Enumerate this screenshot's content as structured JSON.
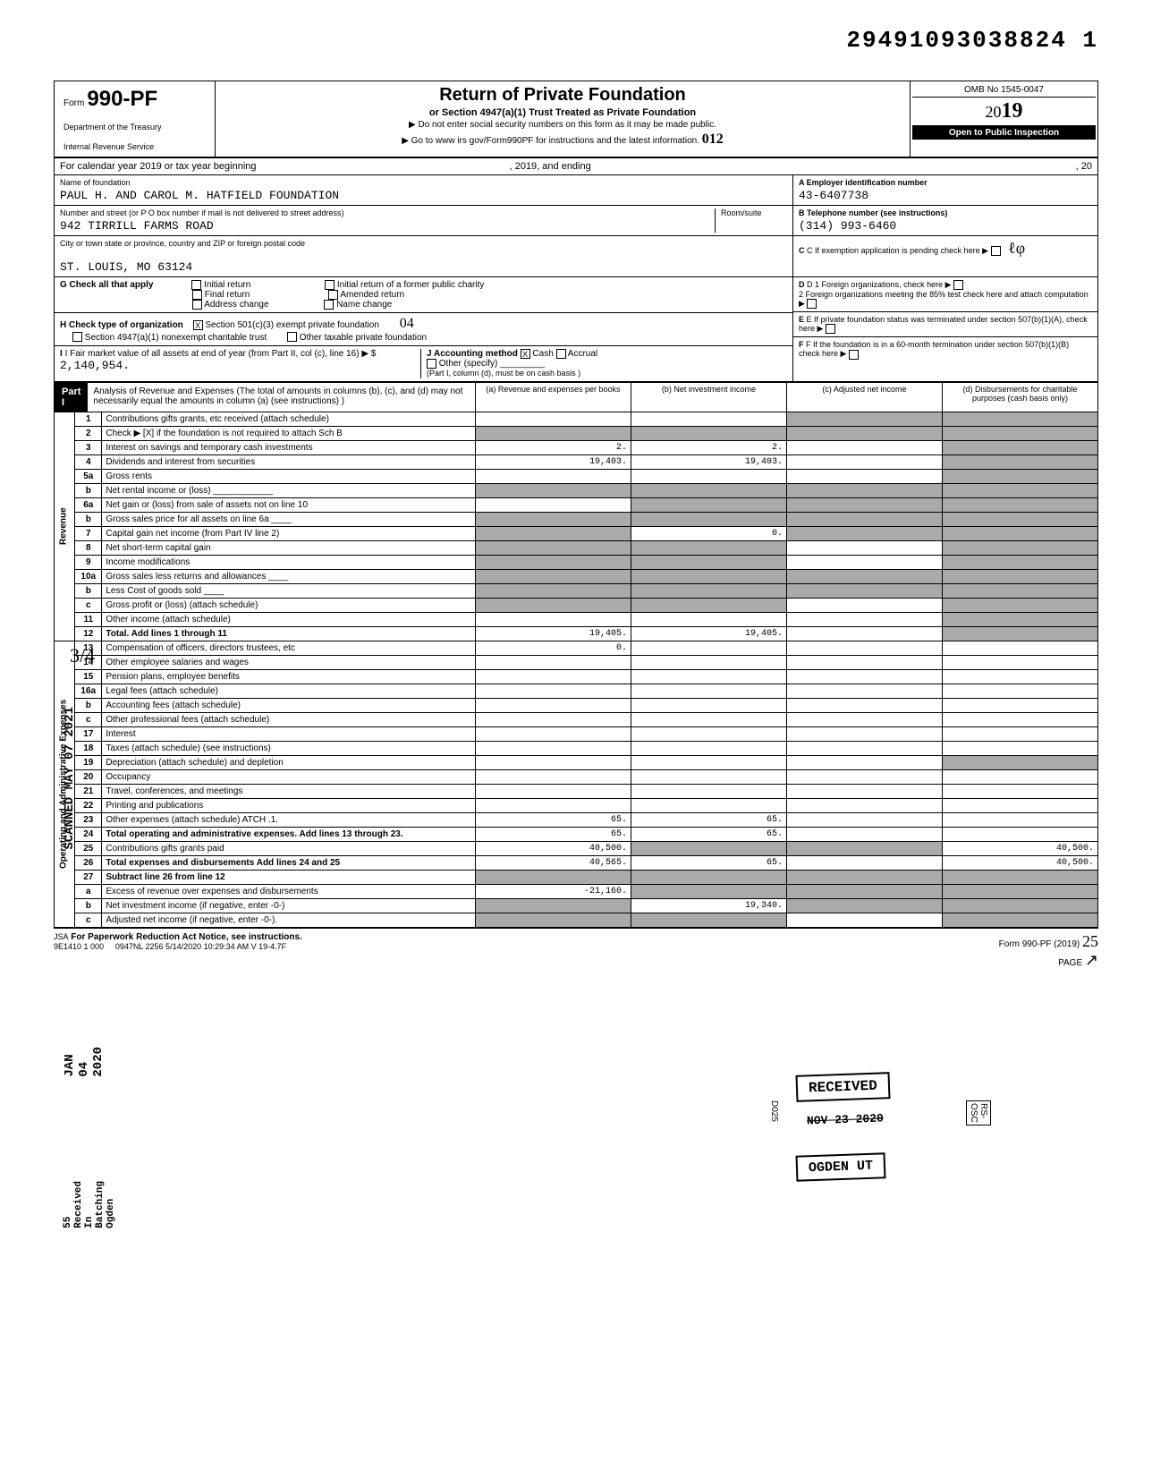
{
  "document_id": "29491093038824  1",
  "header": {
    "form_prefix": "Form",
    "form_number": "990-PF",
    "dept": "Department of the Treasury",
    "irs": "Internal Revenue Service",
    "title": "Return of Private Foundation",
    "subtitle": "or Section 4947(a)(1) Trust Treated as Private Foundation",
    "instr1": "▶ Do not enter social security numbers on this form as it may be made public.",
    "instr2": "▶ Go to www irs gov/Form990PF for instructions and the latest information.",
    "omb": "OMB No 1545-0047",
    "year_prefix": "20",
    "year": "19",
    "inspection": "Open to Public Inspection",
    "handwritten_code": "012"
  },
  "cal_year": "For calendar year 2019 or tax year beginning",
  "cal_year_mid": ", 2019, and ending",
  "cal_year_end": ", 20",
  "foundation": {
    "name_label": "Name of foundation",
    "name": "PAUL H. AND CAROL M. HATFIELD FOUNDATION",
    "addr_label": "Number and street (or P O  box number if mail is not delivered to street address)",
    "addr": "942 TIRRILL FARMS ROAD",
    "room_label": "Room/suite",
    "city_label": "City or town  state or province, country  and ZIP or foreign postal code",
    "city": "ST. LOUIS, MO 63124",
    "ein_label": "A  Employer identification number",
    "ein": "43-6407738",
    "phone_label": "B  Telephone number (see instructions)",
    "phone": "(314) 993-6460",
    "exempt_label": "C  If exemption application is pending  check here"
  },
  "checks": {
    "g_label": "G Check all that apply",
    "g_opts": [
      "Initial return",
      "Final return",
      "Address change",
      "Initial return of a former public charity",
      "Amended return",
      "Name change"
    ],
    "h_label": "H Check type of organization",
    "h_opt1": "Section 501(c)(3) exempt private foundation",
    "h_opt1_checked": "X",
    "h_opt2": "Section 4947(a)(1) nonexempt charitable trust",
    "h_opt3": "Other taxable private foundation",
    "h_handwritten": "04",
    "i_label": "I  Fair market value of all assets at end of year (from Part II, col (c), line 16) ▶ $",
    "i_value": "2,140,954.",
    "j_label": "J Accounting method",
    "j_cash": "Cash",
    "j_cash_checked": "X",
    "j_accrual": "Accrual",
    "j_other": "Other (specify)",
    "j_note": "(Part I, column (d), must be on cash basis )",
    "d_label": "D  1 Foreign organizations, check here",
    "d_label2": "2 Foreign organizations meeting the 85% test  check here and attach computation",
    "e_label": "E  If private foundation status was terminated under section 507(b)(1)(A), check here",
    "f_label": "F  If the foundation is in a 60-month termination under section 507(b)(1)(B)  check here"
  },
  "part1": {
    "label": "Part I",
    "desc": "Analysis of Revenue and Expenses (The total of amounts in columns (b), (c), and (d) may not necessarily equal the amounts in column (a) (see instructions) )",
    "col_a": "(a) Revenue and expenses per books",
    "col_b": "(b) Net investment income",
    "col_c": "(c) Adjusted net income",
    "col_d": "(d) Disbursements for charitable purposes (cash basis only)"
  },
  "revenue_label": "Revenue",
  "opex_label": "Operating and Administrative Expenses",
  "lines": [
    {
      "num": "1",
      "desc": "Contributions  gifts  grants, etc  received (attach schedule)",
      "a": "",
      "b": "",
      "c_shade": true,
      "d_shade": true
    },
    {
      "num": "2",
      "desc": "Check ▶ [X] if the foundation is not required to attach Sch B",
      "a": "",
      "b": "",
      "c_shade": true,
      "d_shade": true,
      "a_shade": true,
      "b_shade": true
    },
    {
      "num": "3",
      "desc": "Interest on savings and temporary cash investments",
      "a": "2.",
      "b": "2.",
      "c": "",
      "d_shade": true
    },
    {
      "num": "4",
      "desc": "Dividends and interest from securities",
      "a": "19,403.",
      "b": "19,403.",
      "c": "",
      "d_shade": true
    },
    {
      "num": "5a",
      "desc": "Gross rents",
      "a": "",
      "b": "",
      "c": "",
      "d_shade": true
    },
    {
      "num": "b",
      "desc": "Net rental income or (loss) ____________",
      "a_shade": true,
      "b_shade": true,
      "c_shade": true,
      "d_shade": true
    },
    {
      "num": "6a",
      "desc": "Net gain or (loss) from sale of assets not on line 10",
      "a": "",
      "b_shade": true,
      "c_shade": true,
      "d_shade": true
    },
    {
      "num": "b",
      "desc": "Gross sales price for all assets on line 6a ____",
      "a_shade": true,
      "b_shade": true,
      "c_shade": true,
      "d_shade": true
    },
    {
      "num": "7",
      "desc": "Capital gain net income (from Part IV  line 2)",
      "a_shade": true,
      "b": "0.",
      "c_shade": true,
      "d_shade": true
    },
    {
      "num": "8",
      "desc": "Net short-term capital gain",
      "a_shade": true,
      "b_shade": true,
      "c": "",
      "d_shade": true
    },
    {
      "num": "9",
      "desc": "Income modifications",
      "a_shade": true,
      "b_shade": true,
      "c": "",
      "d_shade": true
    },
    {
      "num": "10a",
      "desc": "Gross sales less returns and allowances ____",
      "a_shade": true,
      "b_shade": true,
      "c_shade": true,
      "d_shade": true
    },
    {
      "num": "b",
      "desc": "Less Cost of goods sold ____",
      "a_shade": true,
      "b_shade": true,
      "c_shade": true,
      "d_shade": true
    },
    {
      "num": "c",
      "desc": "Gross profit or (loss) (attach schedule)",
      "a_shade": true,
      "b_shade": true,
      "c": "",
      "d_shade": true
    },
    {
      "num": "11",
      "desc": "Other income (attach schedule)",
      "a": "",
      "b": "",
      "c": "",
      "d_shade": true
    },
    {
      "num": "12",
      "desc": "Total. Add lines 1 through 11",
      "a": "19,405.",
      "b": "19,405.",
      "c": "",
      "d_shade": true,
      "bold": true
    }
  ],
  "expense_lines": [
    {
      "num": "13",
      "desc": "Compensation of officers, directors  trustees, etc",
      "a": "0.",
      "b": "",
      "c": "",
      "d": ""
    },
    {
      "num": "14",
      "desc": "Other employee salaries and wages",
      "a": "",
      "b": "",
      "c": "",
      "d": ""
    },
    {
      "num": "15",
      "desc": "Pension plans, employee benefits",
      "a": "",
      "b": "",
      "c": "",
      "d": ""
    },
    {
      "num": "16a",
      "desc": "Legal fees (attach schedule)",
      "a": "",
      "b": "",
      "c": "",
      "d": ""
    },
    {
      "num": "b",
      "desc": "Accounting fees (attach schedule)",
      "a": "",
      "b": "",
      "c": "",
      "d": ""
    },
    {
      "num": "c",
      "desc": "Other professional fees (attach schedule)",
      "a": "",
      "b": "",
      "c": "",
      "d": ""
    },
    {
      "num": "17",
      "desc": "Interest",
      "a": "",
      "b": "",
      "c": "",
      "d": ""
    },
    {
      "num": "18",
      "desc": "Taxes (attach schedule) (see instructions)",
      "a": "",
      "b": "",
      "c": "",
      "d": ""
    },
    {
      "num": "19",
      "desc": "Depreciation (attach schedule) and depletion",
      "a": "",
      "b": "",
      "c": "",
      "d_shade": true
    },
    {
      "num": "20",
      "desc": "Occupancy",
      "a": "",
      "b": "",
      "c": "",
      "d": ""
    },
    {
      "num": "21",
      "desc": "Travel, conferences, and meetings",
      "a": "",
      "b": "",
      "c": "",
      "d": ""
    },
    {
      "num": "22",
      "desc": "Printing and publications",
      "a": "",
      "b": "",
      "c": "",
      "d": ""
    },
    {
      "num": "23",
      "desc": "Other expenses (attach schedule) ATCH .1.",
      "a": "65.",
      "b": "65.",
      "c": "",
      "d": ""
    },
    {
      "num": "24",
      "desc": "Total operating and administrative expenses. Add lines 13 through 23.",
      "a": "65.",
      "b": "65.",
      "c": "",
      "d": "",
      "bold": true
    },
    {
      "num": "25",
      "desc": "Contributions  gifts  grants paid",
      "a": "40,500.",
      "b_shade": true,
      "c_shade": true,
      "d": "40,500."
    },
    {
      "num": "26",
      "desc": "Total expenses and disbursements  Add lines 24 and 25",
      "a": "40,565.",
      "b": "65.",
      "c": "",
      "d": "40,500.",
      "bold": true
    },
    {
      "num": "27",
      "desc": "Subtract line 26 from line 12",
      "a_shade": true,
      "b_shade": true,
      "c_shade": true,
      "d_shade": true,
      "bold": true
    },
    {
      "num": "a",
      "desc": "Excess of revenue over expenses and disbursements",
      "a": "-21,160.",
      "b_shade": true,
      "c_shade": true,
      "d_shade": true
    },
    {
      "num": "b",
      "desc": "Net investment income (if negative, enter -0-)",
      "a_shade": true,
      "b": "19,340.",
      "c_shade": true,
      "d_shade": true
    },
    {
      "num": "c",
      "desc": "Adjusted net income (if negative, enter -0-).",
      "a_shade": true,
      "b_shade": true,
      "c": "",
      "d_shade": true
    }
  ],
  "stamps": {
    "received": "RECEIVED",
    "date_crossed": "NOV 23 2020",
    "ogden": "OGDEN  UT",
    "side_scanned": "SCANNED MAY 07 2021",
    "side_jan": "JAN 04 2020",
    "side_received": "55 Received In Batching Ogden",
    "handwritten_34": "3/4",
    "d025": "D025",
    "rs_osc": "RS-OSC"
  },
  "footer": {
    "jsa": "JSA",
    "paperwork": "For Paperwork Reduction Act Notice, see instructions.",
    "code": "9E1410 1 000",
    "batch": "0947NL 2256  5/14/2020   10:29:34 AM  V 19-4.7F",
    "form": "Form 990-PF (2019)",
    "page": "PAGE"
  }
}
